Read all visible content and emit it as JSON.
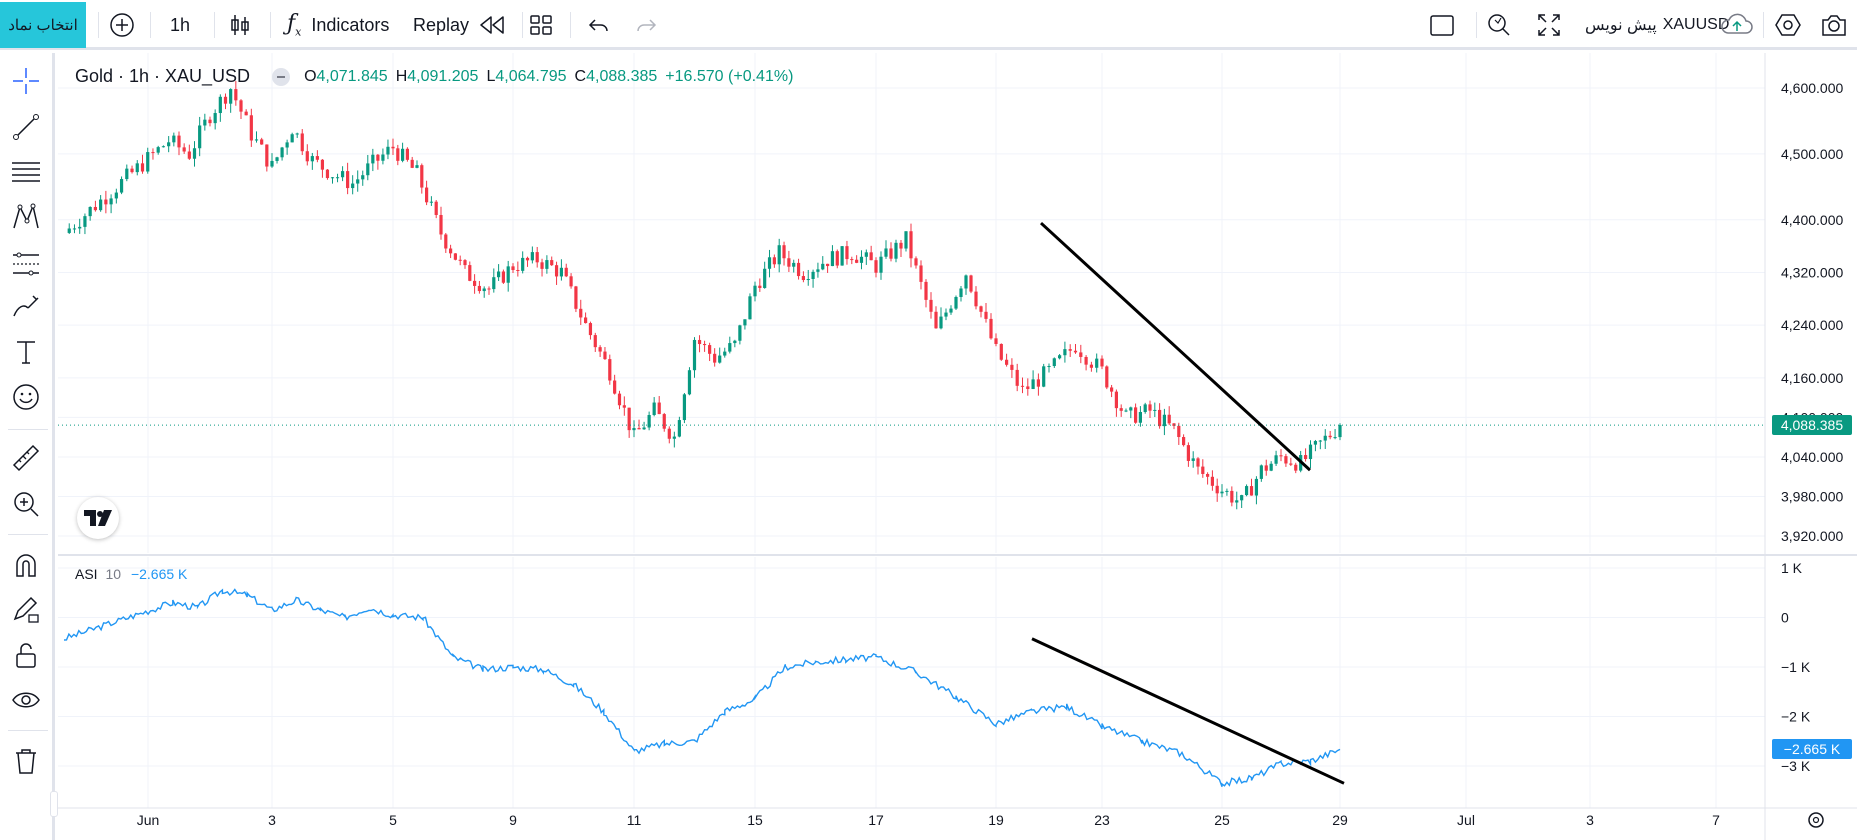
{
  "toolbar": {
    "symbol_search": "انتخاب نماد",
    "interval": "1h",
    "indicators": "Indicators",
    "replay": "Replay",
    "symbol_code": "XAUUSD",
    "draft_label": "پیش نویس"
  },
  "legend": {
    "title": "Gold · 1h · XAU_USD",
    "open_label": "O",
    "open": "4,071.845",
    "high_label": "H",
    "high": "4,091.205",
    "low_label": "L",
    "low": "4,064.795",
    "close_label": "C",
    "close": "4,088.385",
    "change": "+16.570 (+0.41%)"
  },
  "asi_legend": {
    "name": "ASI",
    "length": "10",
    "value": "−2.665 K"
  },
  "price_axis": {
    "ticks": [
      "4,600.000",
      "4,500.000",
      "4,400.000",
      "4,320.000",
      "4,240.000",
      "4,160.000",
      "4,100.000",
      "4,040.000",
      "3,980.000",
      "3,920.000"
    ],
    "last_price": "4,088.385"
  },
  "asi_axis": {
    "ticks": [
      "1 K",
      "0",
      "−1 K",
      "−2 K",
      "−3 K"
    ],
    "last_value": "−2.665 K"
  },
  "time_axis": {
    "ticks": [
      "Jun",
      "3",
      "5",
      "9",
      "11",
      "15",
      "17",
      "19",
      "23",
      "25",
      "29",
      "Jul",
      "3",
      "7"
    ]
  },
  "colors": {
    "up": "#089981",
    "down": "#f23645",
    "asi": "#2196f3",
    "accent": "#26c6da",
    "trendline": "#000000"
  },
  "chart_data": [
    {
      "type": "candlestick",
      "title": "Gold · 1h · XAU_USD",
      "ylim": [
        3900,
        4620
      ],
      "x_ticks": [
        "Jun",
        "3",
        "5",
        "9",
        "11",
        "15",
        "17",
        "19",
        "23",
        "25",
        "29",
        "Jul",
        "3",
        "7"
      ],
      "close_path": [
        [
          "Jun",
          4380
        ],
        [
          "",
          4520
        ],
        [
          "",
          4500
        ],
        [
          "",
          4560
        ],
        [
          "",
          4600
        ],
        [
          "",
          4530
        ],
        [
          "3",
          4480
        ],
        [
          "",
          4540
        ],
        [
          "",
          4490
        ],
        [
          "",
          4470
        ],
        [
          "",
          4455
        ],
        [
          "",
          4485
        ],
        [
          "5",
          4510
        ],
        [
          "",
          4470
        ],
        [
          "",
          4380
        ],
        [
          "",
          4320
        ],
        [
          "",
          4295
        ],
        [
          "9",
          4330
        ],
        [
          "",
          4340
        ],
        [
          "",
          4320
        ],
        [
          "",
          4240
        ],
        [
          "",
          4170
        ],
        [
          "11",
          4070
        ],
        [
          "",
          4110
        ],
        [
          "",
          4070
        ],
        [
          "",
          4220
        ],
        [
          "",
          4190
        ],
        [
          "",
          4210
        ],
        [
          "15",
          4300
        ],
        [
          "",
          4350
        ],
        [
          "",
          4320
        ],
        [
          "",
          4340
        ],
        [
          "",
          4350
        ],
        [
          "17",
          4330
        ],
        [
          "",
          4370
        ],
        [
          "",
          4230
        ],
        [
          "",
          4320
        ],
        [
          "19",
          4200
        ],
        [
          "",
          4140
        ],
        [
          "",
          4170
        ],
        [
          "",
          4210
        ],
        [
          "23",
          4170
        ],
        [
          "",
          4100
        ],
        [
          "",
          4110
        ],
        [
          "",
          4080
        ],
        [
          "",
          4020
        ],
        [
          "25",
          3990
        ],
        [
          "",
          3970
        ],
        [
          "",
          4020
        ],
        [
          "",
          4040
        ],
        [
          "",
          4030
        ],
        [
          "",
          4060
        ],
        [
          "29",
          4088.385
        ]
      ],
      "trendline": {
        "from": [
          "17",
          4395
        ],
        "to": [
          "29",
          4020
        ]
      },
      "last": 4088.385
    },
    {
      "type": "line",
      "series": [
        {
          "name": "ASI",
          "color": "#2196f3"
        }
      ],
      "ylim": [
        -3300,
        1000
      ],
      "y_ticks": [
        1000,
        0,
        -1000,
        -2000,
        -3000
      ],
      "path": [
        [
          "Jun",
          -430
        ],
        [
          "",
          300
        ],
        [
          "",
          200
        ],
        [
          "",
          550
        ],
        [
          "",
          450
        ],
        [
          "3",
          150
        ],
        [
          "",
          350
        ],
        [
          "",
          150
        ],
        [
          "",
          0
        ],
        [
          "",
          200
        ],
        [
          "5",
          50
        ],
        [
          "",
          0
        ],
        [
          "",
          -800
        ],
        [
          "",
          -1050
        ],
        [
          "9",
          -1000
        ],
        [
          "",
          -1050
        ],
        [
          "",
          -1350
        ],
        [
          "",
          -1900
        ],
        [
          "11",
          -2700
        ],
        [
          "",
          -2550
        ],
        [
          "",
          -2500
        ],
        [
          "",
          -1900
        ],
        [
          "15",
          -1650
        ],
        [
          "",
          -1000
        ],
        [
          "",
          -900
        ],
        [
          "",
          -850
        ],
        [
          "17",
          -800
        ],
        [
          "",
          -1100
        ],
        [
          "",
          -1600
        ],
        [
          "19",
          -2150
        ],
        [
          "",
          -1900
        ],
        [
          "",
          -1800
        ],
        [
          "23",
          -2200
        ],
        [
          "",
          -2500
        ],
        [
          "",
          -2750
        ],
        [
          "25",
          -3350
        ],
        [
          "",
          -3250
        ],
        [
          "",
          -2950
        ],
        [
          "",
          -2900
        ],
        [
          "29",
          -2665
        ]
      ],
      "trendline": {
        "from": [
          "17",
          -430
        ],
        "to": [
          "29",
          -3350
        ]
      },
      "last": -2665
    }
  ]
}
